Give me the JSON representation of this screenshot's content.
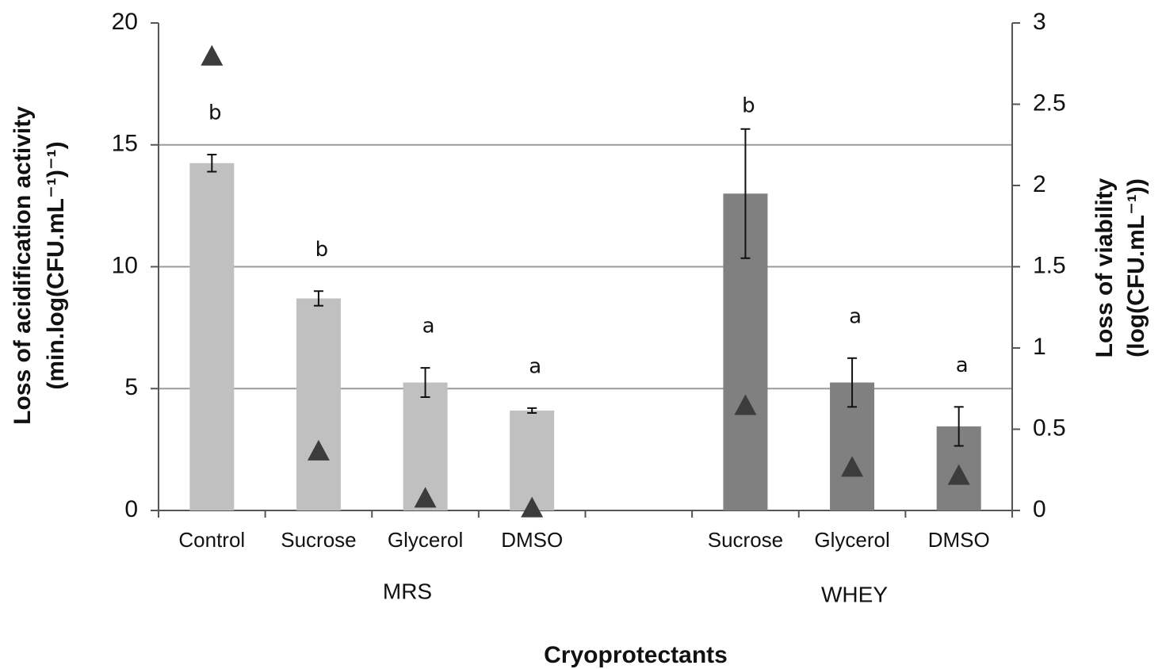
{
  "chart_data": {
    "type": "bar",
    "categories": [
      "Control",
      "Sucrose",
      "Glycerol",
      "DMSO",
      null,
      "Sucrose",
      "Glycerol",
      "DMSO"
    ],
    "group_labels": [
      "MRS",
      "WHEY"
    ],
    "x_label": "Cryoprotectants",
    "y_label": [
      "Loss of acidification  activity",
      "(min.log(CFU.mL⁻¹)⁻¹)"
    ],
    "y2_label": [
      "Loss of viability",
      "(log(CFU.mL⁻¹))"
    ],
    "ylim": [
      0,
      20
    ],
    "yticks": [
      0,
      5,
      10,
      15,
      20
    ],
    "y2lim": [
      0,
      3
    ],
    "y2ticks": [
      0,
      0.5,
      1,
      1.5,
      2,
      2.5,
      3
    ],
    "grid": true,
    "series": [
      {
        "type": "bar",
        "colors": [
          "#c0c0c0",
          "#c0c0c0",
          "#c0c0c0",
          "#c0c0c0",
          null,
          "#808080",
          "#808080",
          "#808080"
        ],
        "values": [
          14.25,
          8.7,
          5.25,
          4.1,
          null,
          13.0,
          5.25,
          3.45
        ],
        "errors": [
          0.35,
          0.3,
          0.6,
          0.1,
          null,
          2.65,
          1.0,
          0.8
        ],
        "letters": [
          "b",
          "b",
          "a",
          "a",
          null,
          "b",
          "a",
          "a"
        ]
      },
      {
        "type": "scatter",
        "axis": "y2",
        "marker": "triangle",
        "color": "#3c3c3c",
        "values": [
          2.78,
          0.35,
          0.06,
          0.0,
          null,
          0.63,
          0.25,
          0.2
        ]
      }
    ]
  }
}
